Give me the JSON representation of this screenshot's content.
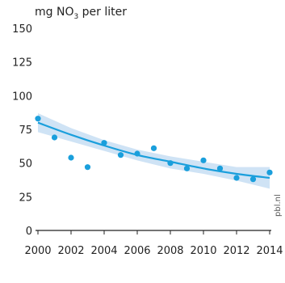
{
  "chart_data": {
    "type": "scatter",
    "title": "",
    "ylabel_parts": {
      "pre": "mg NO",
      "sub": "3",
      "post": " per liter"
    },
    "xlabel": "",
    "source": "pbl.nl",
    "xlim": [
      2000,
      2014
    ],
    "ylim": [
      0,
      150
    ],
    "x_ticks": [
      "2000",
      "2002",
      "2004",
      "2006",
      "2008",
      "2010",
      "2012",
      "2014"
    ],
    "y_ticks": [
      "0",
      "25",
      "50",
      "75",
      "100",
      "125",
      "150"
    ],
    "grid": false,
    "points": [
      {
        "x": 2000,
        "y": 83
      },
      {
        "x": 2001,
        "y": 69
      },
      {
        "x": 2002,
        "y": 54
      },
      {
        "x": 2003,
        "y": 47
      },
      {
        "x": 2004,
        "y": 65
      },
      {
        "x": 2005,
        "y": 56
      },
      {
        "x": 2006,
        "y": 57
      },
      {
        "x": 2007,
        "y": 61
      },
      {
        "x": 2008,
        "y": 50
      },
      {
        "x": 2009,
        "y": 46
      },
      {
        "x": 2010,
        "y": 52
      },
      {
        "x": 2011,
        "y": 46
      },
      {
        "x": 2012,
        "y": 39
      },
      {
        "x": 2013,
        "y": 38
      },
      {
        "x": 2014,
        "y": 43
      }
    ],
    "trend": {
      "x": [
        2000,
        2002,
        2004,
        2006,
        2008,
        2010,
        2012,
        2014
      ],
      "y": [
        80,
        71,
        63,
        56,
        51,
        46,
        42,
        39
      ],
      "band_low": [
        73,
        66,
        59,
        52,
        46,
        42,
        37,
        31
      ],
      "band_high": [
        87,
        76,
        67,
        60,
        55,
        51,
        47,
        47
      ]
    },
    "colors": {
      "points": "#1a9fdc",
      "trend": "#1a9fdc",
      "band": "#cfe3f5",
      "axis": "#222222"
    }
  }
}
